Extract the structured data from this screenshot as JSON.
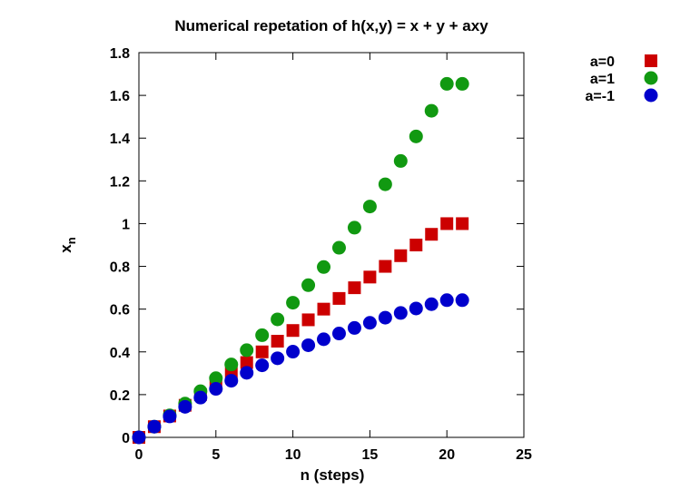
{
  "chart_data": {
    "type": "scatter",
    "title": "Numerical repetation of h(x,y) = x + y + axy",
    "xlabel": "n (steps)",
    "ylabel": "x",
    "ylabel_subscript": "n",
    "xlim": [
      0,
      25
    ],
    "ylim": [
      0,
      1.8
    ],
    "xticks": [
      0,
      5,
      10,
      15,
      20,
      25
    ],
    "xtick_labels": [
      "0",
      "5",
      "10",
      "15",
      "20",
      "25"
    ],
    "yticks": [
      0,
      0.2,
      0.4,
      0.6,
      0.8,
      1,
      1.2,
      1.4,
      1.6,
      1.8
    ],
    "ytick_labels": [
      "0",
      "0.2",
      "0.4",
      "0.6",
      "0.8",
      "1",
      "1.2",
      "1.4",
      "1.6",
      "1.8"
    ],
    "grid": false,
    "legend_position": "outside-top-right",
    "series": [
      {
        "name": "a=0",
        "marker": "square",
        "color": "#cc0000",
        "x": [
          0,
          1,
          2,
          3,
          4,
          5,
          6,
          7,
          8,
          9,
          10,
          11,
          12,
          13,
          14,
          15,
          16,
          17,
          18,
          19,
          20,
          21
        ],
        "y": [
          0,
          0.05,
          0.1,
          0.15,
          0.2,
          0.25,
          0.3,
          0.35,
          0.4,
          0.45,
          0.5,
          0.55,
          0.6,
          0.65,
          0.7,
          0.75,
          0.8,
          0.85,
          0.9,
          0.95,
          1.0,
          1.0
        ]
      },
      {
        "name": "a=1",
        "marker": "circle",
        "color": "#119911",
        "x": [
          0,
          1,
          2,
          3,
          4,
          5,
          6,
          7,
          8,
          9,
          10,
          11,
          12,
          13,
          14,
          15,
          16,
          17,
          18,
          19,
          20,
          21
        ],
        "y": [
          0,
          0.05,
          0.103,
          0.158,
          0.216,
          0.277,
          0.341,
          0.408,
          0.478,
          0.552,
          0.63,
          0.712,
          0.797,
          0.887,
          0.981,
          1.08,
          1.184,
          1.293,
          1.408,
          1.528,
          1.654,
          1.654
        ]
      },
      {
        "name": "a=-1",
        "marker": "circle",
        "color": "#0000cc",
        "x": [
          0,
          1,
          2,
          3,
          4,
          5,
          6,
          7,
          8,
          9,
          10,
          11,
          12,
          13,
          14,
          15,
          16,
          17,
          18,
          19,
          20,
          21
        ],
        "y": [
          0,
          0.05,
          0.098,
          0.143,
          0.186,
          0.227,
          0.265,
          0.302,
          0.337,
          0.37,
          0.401,
          0.431,
          0.459,
          0.486,
          0.512,
          0.536,
          0.56,
          0.582,
          0.603,
          0.623,
          0.642,
          0.642
        ]
      }
    ]
  }
}
